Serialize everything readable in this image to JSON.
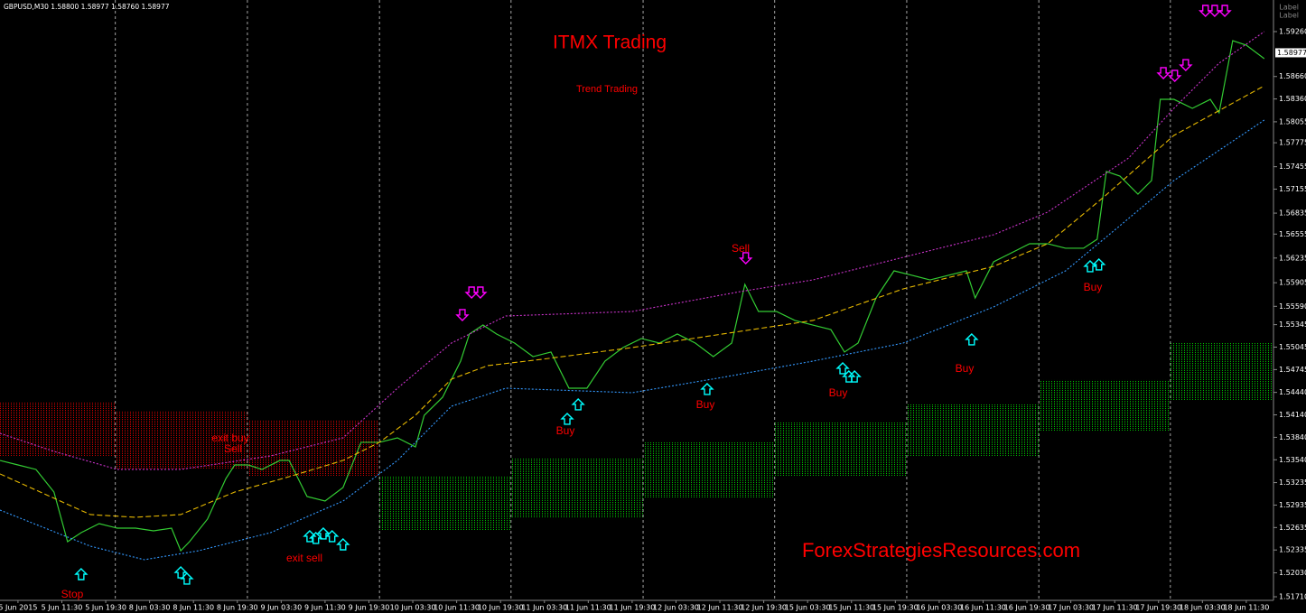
{
  "header": "GBPUSD,M30  1.58800 1.58977 1.58760 1.58977",
  "corner_labels": [
    "Label",
    "Label"
  ],
  "watermark": "ForexStrategiesResources.com",
  "annotations": [
    "Sell",
    "Buy",
    "Buy",
    "Buy",
    "Buy",
    "Buy",
    "exit buy",
    "Sell",
    "exit sell",
    "Stop"
  ],
  "chart_data": {
    "type": "line",
    "title": "ITMX Trading",
    "subtitle": "Trend Trading",
    "xlim": [
      -0.41,
      28.62
    ],
    "ylim": [
      1.51662,
      1.59682
    ],
    "xticks": [
      {
        "value": 0,
        "label": "5 Jun 2015"
      },
      {
        "value": 1,
        "label": "5 Jun 11:30"
      },
      {
        "value": 2,
        "label": "5 Jun 19:30"
      },
      {
        "value": 3,
        "label": "8 Jun 03:30"
      },
      {
        "value": 4,
        "label": "8 Jun 11:30"
      },
      {
        "value": 5,
        "label": "8 Jun 19:30"
      },
      {
        "value": 6,
        "label": "9 Jun 03:30"
      },
      {
        "value": 7,
        "label": "9 Jun 11:30"
      },
      {
        "value": 8,
        "label": "9 Jun 19:30"
      },
      {
        "value": 9,
        "label": "10 Jun 03:30"
      },
      {
        "value": 10,
        "label": "10 Jun 11:30"
      },
      {
        "value": 11,
        "label": "10 Jun 19:30"
      },
      {
        "value": 12,
        "label": "11 Jun 03:30"
      },
      {
        "value": 13,
        "label": "11 Jun 11:30"
      },
      {
        "value": 14,
        "label": "11 Jun 19:30"
      },
      {
        "value": 15,
        "label": "12 Jun 03:30"
      },
      {
        "value": 16,
        "label": "12 Jun 11:30"
      },
      {
        "value": 17,
        "label": "12 Jun 19:30"
      },
      {
        "value": 18,
        "label": "15 Jun 03:30"
      },
      {
        "value": 19,
        "label": "15 Jun 11:30"
      },
      {
        "value": 20,
        "label": "15 Jun 19:30"
      },
      {
        "value": 21,
        "label": "16 Jun 03:30"
      },
      {
        "value": 22,
        "label": "16 Jun 11:30"
      },
      {
        "value": 23,
        "label": "16 Jun 19:30"
      },
      {
        "value": 24,
        "label": "17 Jun 03:30"
      },
      {
        "value": 25,
        "label": "17 Jun 11:30"
      },
      {
        "value": 26,
        "label": "17 Jun 19:30"
      },
      {
        "value": 27,
        "label": "18 Jun 03:30"
      },
      {
        "value": 28,
        "label": "18 Jun 11:30"
      }
    ],
    "yticks": [
      {
        "value": 1.5926,
        "label": "1.59260"
      },
      {
        "value": 1.5866,
        "label": "1.58660"
      },
      {
        "value": 1.5836,
        "label": "1.58360"
      },
      1.58055,
      1.57775,
      1.57455,
      1.57155,
      1.56835,
      1.56555,
      1.56235,
      1.55905,
      {
        "value": 1.5559,
        "label": "1.55590"
      },
      1.55345,
      1.55045,
      1.54745,
      {
        "value": 1.5444,
        "label": "1.54440"
      },
      {
        "value": 1.5414,
        "label": "1.54140"
      },
      {
        "value": 1.5384,
        "label": "1.53840"
      },
      {
        "value": 1.5354,
        "label": "1.53540"
      },
      1.53235,
      1.52935,
      1.52635,
      1.52335,
      {
        "value": 1.5203,
        "label": "1.52030"
      },
      {
        "value": 1.5171,
        "label": "1.51710"
      }
    ],
    "current_price": 1.58977,
    "separators": [
      2.22,
      5.23,
      8.24,
      11.24,
      14.25,
      17.25,
      20.26,
      23.27,
      26.27
    ],
    "zones": [
      {
        "color": "#d00000",
        "x": [
          -0.41,
          2.22
        ],
        "low": 1.53592,
        "high": 1.54315
      },
      {
        "color": "#d00000",
        "x": [
          2.22,
          5.23
        ],
        "low": 1.53411,
        "high": 1.54195
      },
      {
        "color": "#d00000",
        "x": [
          5.23,
          8.24
        ],
        "low": 1.53326,
        "high": 1.54074
      },
      {
        "color": "#00c000",
        "x": [
          8.24,
          11.24
        ],
        "low": 1.52591,
        "high": 1.53326
      },
      {
        "color": "#00c000",
        "x": [
          11.24,
          14.25
        ],
        "low": 1.52772,
        "high": 1.53556
      },
      {
        "color": "#00c000",
        "x": [
          14.25,
          17.25
        ],
        "low": 1.53025,
        "high": 1.53773
      },
      {
        "color": "#00c000",
        "x": [
          17.25,
          20.26
        ],
        "low": 1.53326,
        "high": 1.5405
      },
      {
        "color": "#00c000",
        "x": [
          20.26,
          23.27
        ],
        "low": 1.53592,
        "high": 1.54291
      },
      {
        "color": "#00c000",
        "x": [
          23.27,
          26.27
        ],
        "low": 1.53917,
        "high": 1.54605
      },
      {
        "color": "#00c000",
        "x": [
          26.27,
          28.62
        ],
        "low": 1.5434,
        "high": 1.55099
      }
    ],
    "series": [
      {
        "color": "#33cc33",
        "style": "solid",
        "x": [
          -0.41,
          0,
          0.41,
          0.82,
          1.13,
          1.44,
          1.85,
          2.26,
          2.68,
          3.09,
          3.5,
          3.71,
          3.91,
          4.32,
          4.74,
          4.94,
          5.25,
          5.56,
          5.97,
          6.18,
          6.59,
          7.0,
          7.41,
          7.82,
          8.24,
          8.65,
          9.06,
          9.26,
          9.68,
          10.09,
          10.29,
          10.6,
          10.91,
          11.32,
          11.74,
          12.15,
          12.56,
          12.97,
          13.38,
          13.79,
          14.21,
          14.62,
          15.03,
          15.44,
          15.85,
          16.27,
          16.57,
          16.88,
          17.29,
          17.71,
          18.12,
          18.53,
          18.84,
          19.15,
          19.56,
          19.97,
          20.38,
          20.79,
          21.21,
          21.62,
          21.82,
          22.24,
          22.65,
          23.06,
          23.47,
          23.88,
          24.29,
          24.6,
          24.81,
          25.12,
          25.53,
          25.84,
          26.04,
          26.35,
          26.77,
          27.18,
          27.38,
          27.69,
          28.0,
          28.41
        ],
        "values": [
          1.53531,
          1.53471,
          1.53411,
          1.53109,
          1.52446,
          1.52567,
          1.52687,
          1.52627,
          1.52627,
          1.52591,
          1.52627,
          1.52325,
          1.52446,
          1.52748,
          1.5329,
          1.53471,
          1.53471,
          1.53411,
          1.53531,
          1.53531,
          1.53049,
          1.52989,
          1.5317,
          1.53773,
          1.53773,
          1.53833,
          1.53712,
          1.54134,
          1.54376,
          1.54858,
          1.5522,
          1.5534,
          1.5522,
          1.55099,
          1.54918,
          1.54979,
          1.54496,
          1.54496,
          1.54858,
          1.55039,
          1.5516,
          1.55099,
          1.5522,
          1.55099,
          1.54918,
          1.55099,
          1.55883,
          1.55521,
          1.55521,
          1.55401,
          1.5534,
          1.5528,
          1.54979,
          1.55099,
          1.55702,
          1.56064,
          1.56004,
          1.55943,
          1.56004,
          1.56064,
          1.55702,
          1.56185,
          1.56305,
          1.56426,
          1.56426,
          1.56366,
          1.56366,
          1.56486,
          1.57391,
          1.5733,
          1.57089,
          1.5727,
          1.58355,
          1.58355,
          1.58235,
          1.58355,
          1.58175,
          1.59139,
          1.59079,
          1.58898
        ]
      },
      {
        "color": "#e6b800",
        "style": "dashed",
        "x": [
          -0.41,
          1.65,
          2.68,
          3.71,
          4.94,
          6.18,
          7.41,
          8.24,
          9.06,
          9.88,
          10.71,
          11.94,
          14.0,
          16.06,
          18.12,
          20.18,
          22.24,
          23.47,
          24.71,
          26.35,
          28.41
        ],
        "values": [
          1.53351,
          1.52808,
          1.52772,
          1.52808,
          1.53109,
          1.53314,
          1.53531,
          1.53773,
          1.54134,
          1.54617,
          1.54798,
          1.54882,
          1.55039,
          1.5522,
          1.55401,
          1.55823,
          1.56124,
          1.56426,
          1.57029,
          1.57873,
          1.58536
        ]
      },
      {
        "color": "#cc33cc",
        "style": "dotted",
        "x": [
          -0.41,
          0.82,
          2.26,
          3.71,
          5.76,
          7.41,
          8.65,
          9.88,
          11.12,
          14.0,
          16.47,
          18.12,
          20.18,
          22.24,
          23.47,
          25.32,
          26.35,
          27.38,
          28.41
        ],
        "values": [
          1.53893,
          1.53652,
          1.53411,
          1.53411,
          1.53592,
          1.53833,
          1.54496,
          1.55099,
          1.55461,
          1.55521,
          1.55787,
          1.55943,
          1.56245,
          1.56546,
          1.56848,
          1.57572,
          1.58235,
          1.58838,
          1.5926
        ]
      },
      {
        "color": "#3399ff",
        "style": "dotted",
        "x": [
          -0.41,
          1.65,
          2.88,
          4.12,
          5.76,
          7.41,
          8.65,
          9.88,
          11.12,
          14.0,
          16.06,
          18.12,
          20.18,
          22.24,
          23.88,
          25.12,
          26.35,
          28.41
        ],
        "values": [
          1.52868,
          1.52386,
          1.52205,
          1.52325,
          1.52567,
          1.52989,
          1.53531,
          1.54255,
          1.54496,
          1.54436,
          1.54641,
          1.54858,
          1.55099,
          1.55582,
          1.56064,
          1.56667,
          1.5727,
          1.58078
        ]
      }
    ],
    "signals": {
      "buy": {
        "color": "#00ffff",
        "x": [
          1.44,
          3.71,
          3.85,
          6.65,
          6.79,
          6.96,
          7.16,
          7.41,
          12.52,
          12.77,
          15.71,
          18.8,
          18.94,
          19.07,
          21.74,
          24.44,
          24.64
        ],
        "values": [
          1.52084,
          1.52108,
          1.52024,
          1.52591,
          1.52567,
          1.52627,
          1.52591,
          1.52482,
          1.54159,
          1.54352,
          1.54557,
          1.54834,
          1.54725,
          1.54725,
          1.5522,
          1.56197,
          1.56221
        ]
      },
      "sell": {
        "color": "#ff00ff",
        "x": [
          10.13,
          10.34,
          10.54,
          16.59,
          26.11,
          26.37,
          26.62,
          27.07,
          27.28,
          27.51
        ],
        "values": [
          1.55401,
          1.55702,
          1.55702,
          1.56161,
          1.58633,
          1.58597,
          1.58741,
          1.59465,
          1.59465,
          1.59465
        ]
      }
    }
  }
}
